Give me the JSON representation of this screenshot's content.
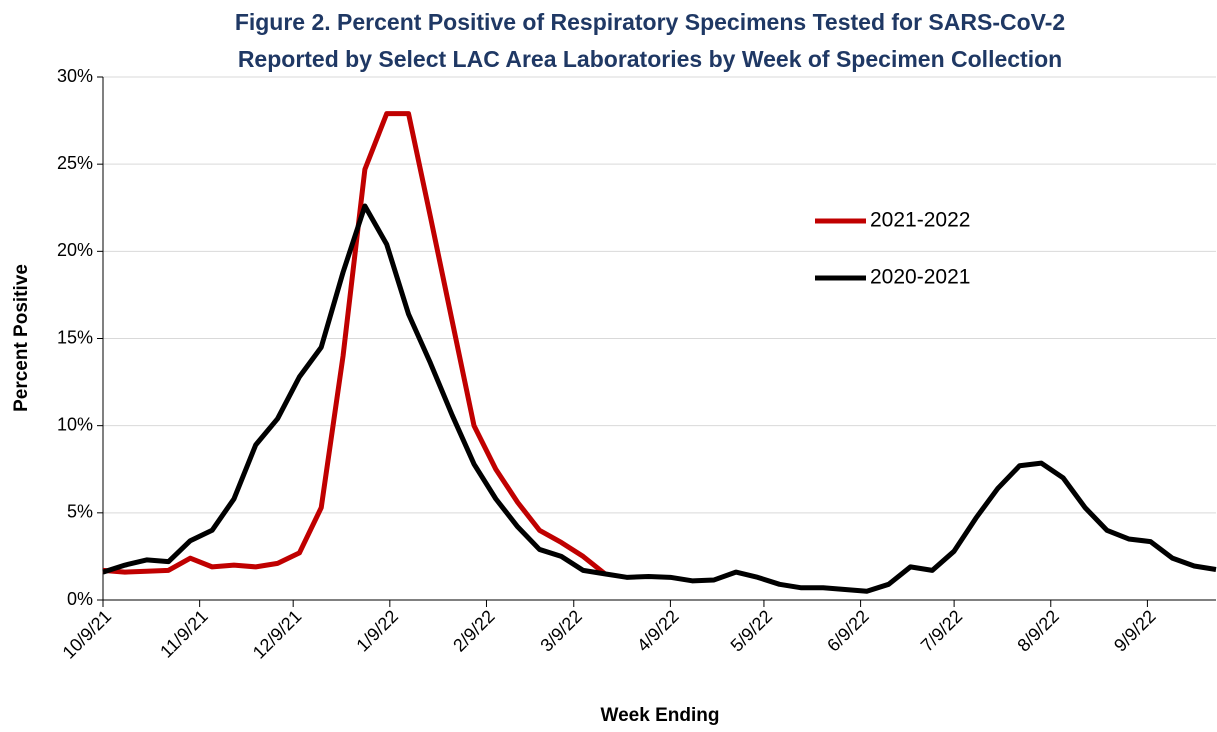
{
  "chart_data": {
    "type": "line",
    "title": [
      "Figure 2. Percent Positive of Respiratory Specimens Tested for SARS-CoV-2",
      "Reported by Select LAC Area Laboratories by Week of Specimen Collection"
    ],
    "x_label": "Week Ending",
    "y_label": "Percent Positive",
    "x": [
      0,
      7,
      14,
      21,
      28,
      35,
      42,
      49,
      56,
      63,
      70,
      77,
      84,
      91,
      98,
      105,
      112,
      119,
      126,
      133,
      140,
      147,
      154,
      161,
      168,
      175,
      182,
      189,
      196,
      203,
      210,
      217,
      224,
      231,
      238,
      245,
      252,
      259,
      266,
      273,
      280,
      287,
      294,
      301,
      308,
      315,
      322,
      329,
      336,
      343,
      350,
      357
    ],
    "xlim": [
      0,
      357
    ],
    "xticks": [
      {
        "value": 0,
        "label": "10/9/21"
      },
      {
        "value": 31,
        "label": "11/9/21"
      },
      {
        "value": 61,
        "label": "12/9/21"
      },
      {
        "value": 92,
        "label": "1/9/22"
      },
      {
        "value": 123,
        "label": "2/9/22"
      },
      {
        "value": 151,
        "label": "3/9/22"
      },
      {
        "value": 182,
        "label": "4/9/22"
      },
      {
        "value": 212,
        "label": "5/9/22"
      },
      {
        "value": 243,
        "label": "6/9/22"
      },
      {
        "value": 273,
        "label": "7/9/22"
      },
      {
        "value": 304,
        "label": "8/9/22"
      },
      {
        "value": 335,
        "label": "9/9/22"
      }
    ],
    "ylim": [
      0,
      30
    ],
    "yticks": [
      {
        "value": 0,
        "label": "0%"
      },
      {
        "value": 5,
        "label": "5%"
      },
      {
        "value": 10,
        "label": "10%"
      },
      {
        "value": 15,
        "label": "15%"
      },
      {
        "value": 20,
        "label": "20%"
      },
      {
        "value": 25,
        "label": "25%"
      },
      {
        "value": 30,
        "label": "30%"
      }
    ],
    "grid": true,
    "series": [
      {
        "name": "2021-2022",
        "color": "#c00000",
        "values": [
          1.7,
          1.6,
          1.65,
          1.7,
          2.4,
          1.9,
          2.0,
          1.9,
          2.1,
          2.7,
          5.3,
          14.0,
          24.7,
          27.9,
          27.9,
          22.0,
          16.0,
          10.0,
          7.5,
          5.6,
          4.0,
          3.3,
          2.5,
          1.5,
          null,
          null,
          null,
          null,
          null,
          null,
          null,
          null,
          null,
          null,
          null,
          null,
          null,
          null,
          null,
          null,
          null,
          null,
          null,
          null,
          null,
          null,
          null,
          null,
          null,
          null,
          null,
          null
        ]
      },
      {
        "name": "2020-2021",
        "color": "#000000",
        "values": [
          1.6,
          2.0,
          2.3,
          2.2,
          3.4,
          4.0,
          5.8,
          8.9,
          10.4,
          12.8,
          14.5,
          18.8,
          22.6,
          20.4,
          16.4,
          13.6,
          10.6,
          7.8,
          5.8,
          4.2,
          2.9,
          2.5,
          1.7,
          1.5,
          1.3,
          1.35,
          1.3,
          1.1,
          1.15,
          1.6,
          1.3,
          0.9,
          0.7,
          0.7,
          0.6,
          0.5,
          0.9,
          1.9,
          1.7,
          2.8,
          4.7,
          6.4,
          7.7,
          7.85,
          7.0,
          5.3,
          4.0,
          3.5,
          3.35,
          2.4,
          1.95,
          1.75
        ]
      }
    ]
  }
}
